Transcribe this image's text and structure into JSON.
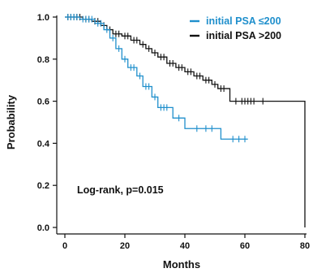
{
  "chart_data": {
    "type": "line",
    "subtype": "kaplan-meier survival curve",
    "title": "",
    "xlabel": "Months",
    "ylabel": "Probability",
    "xlim": [
      0,
      80
    ],
    "ylim": [
      0,
      1
    ],
    "xticks": [
      0,
      20,
      40,
      60,
      80
    ],
    "yticks": [
      0.0,
      0.2,
      0.4,
      0.6,
      0.8,
      1.0
    ],
    "xtick_labels": [
      "0",
      "20",
      "40",
      "60",
      "80"
    ],
    "ytick_labels": [
      "0.0",
      "0.2",
      "0.4",
      "0.6",
      "0.8",
      "1.0"
    ],
    "grid": false,
    "legend_position": "top-right",
    "annotation": "Log-rank, p=0.015",
    "series": [
      {
        "name": "initial PSA ≤200",
        "color": "#1f8fcc",
        "steps": [
          [
            0,
            1.0
          ],
          [
            5,
            0.99
          ],
          [
            10,
            0.97
          ],
          [
            13,
            0.94
          ],
          [
            15,
            0.9
          ],
          [
            17,
            0.85
          ],
          [
            19,
            0.8
          ],
          [
            21,
            0.76
          ],
          [
            24,
            0.72
          ],
          [
            26,
            0.67
          ],
          [
            29,
            0.62
          ],
          [
            31,
            0.57
          ],
          [
            36,
            0.52
          ],
          [
            40,
            0.47
          ],
          [
            52,
            0.42
          ],
          [
            61,
            0.42
          ]
        ],
        "censored": [
          [
            1,
            1.0
          ],
          [
            2,
            1.0
          ],
          [
            3,
            1.0
          ],
          [
            4,
            1.0
          ],
          [
            6,
            0.99
          ],
          [
            7,
            0.99
          ],
          [
            8,
            0.99
          ],
          [
            9,
            0.99
          ],
          [
            11,
            0.97
          ],
          [
            12,
            0.97
          ],
          [
            14,
            0.94
          ],
          [
            16,
            0.9
          ],
          [
            18,
            0.85
          ],
          [
            20,
            0.8
          ],
          [
            22,
            0.76
          ],
          [
            23,
            0.76
          ],
          [
            25,
            0.72
          ],
          [
            27,
            0.67
          ],
          [
            28,
            0.67
          ],
          [
            30,
            0.62
          ],
          [
            32,
            0.57
          ],
          [
            33,
            0.57
          ],
          [
            34,
            0.57
          ],
          [
            38,
            0.52
          ],
          [
            44,
            0.47
          ],
          [
            47,
            0.47
          ],
          [
            49,
            0.47
          ],
          [
            56,
            0.42
          ],
          [
            58,
            0.42
          ],
          [
            60,
            0.42
          ]
        ]
      },
      {
        "name": "initial PSA >200",
        "color": "#111111",
        "steps": [
          [
            0,
            1.0
          ],
          [
            6,
            0.99
          ],
          [
            9,
            0.98
          ],
          [
            12,
            0.96
          ],
          [
            14,
            0.94
          ],
          [
            16,
            0.92
          ],
          [
            19,
            0.91
          ],
          [
            22,
            0.89
          ],
          [
            25,
            0.87
          ],
          [
            27,
            0.85
          ],
          [
            29,
            0.83
          ],
          [
            31,
            0.81
          ],
          [
            34,
            0.78
          ],
          [
            37,
            0.76
          ],
          [
            40,
            0.74
          ],
          [
            43,
            0.72
          ],
          [
            46,
            0.7
          ],
          [
            49,
            0.68
          ],
          [
            51,
            0.66
          ],
          [
            55,
            0.6
          ],
          [
            80,
            0.0
          ]
        ],
        "censored": [
          [
            1,
            1.0
          ],
          [
            2,
            1.0
          ],
          [
            3,
            1.0
          ],
          [
            4,
            1.0
          ],
          [
            5,
            1.0
          ],
          [
            7,
            0.99
          ],
          [
            8,
            0.99
          ],
          [
            10,
            0.98
          ],
          [
            11,
            0.98
          ],
          [
            13,
            0.96
          ],
          [
            15,
            0.94
          ],
          [
            17,
            0.92
          ],
          [
            18,
            0.92
          ],
          [
            20,
            0.91
          ],
          [
            21,
            0.91
          ],
          [
            23,
            0.89
          ],
          [
            24,
            0.89
          ],
          [
            26,
            0.87
          ],
          [
            28,
            0.85
          ],
          [
            30,
            0.83
          ],
          [
            32,
            0.81
          ],
          [
            33,
            0.81
          ],
          [
            35,
            0.78
          ],
          [
            36,
            0.78
          ],
          [
            38,
            0.76
          ],
          [
            39,
            0.76
          ],
          [
            41,
            0.74
          ],
          [
            42,
            0.74
          ],
          [
            44,
            0.72
          ],
          [
            45,
            0.72
          ],
          [
            47,
            0.7
          ],
          [
            48,
            0.7
          ],
          [
            50,
            0.68
          ],
          [
            52,
            0.66
          ],
          [
            53,
            0.66
          ],
          [
            57,
            0.6
          ],
          [
            59,
            0.6
          ],
          [
            60,
            0.6
          ],
          [
            61,
            0.6
          ],
          [
            62,
            0.6
          ],
          [
            63,
            0.6
          ],
          [
            66,
            0.6
          ]
        ]
      }
    ]
  }
}
